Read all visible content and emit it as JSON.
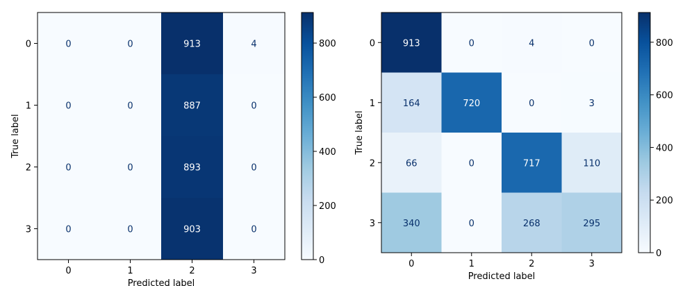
{
  "chart_data": [
    {
      "type": "heatmap",
      "cmap": "Blues",
      "xlabel": "Predicted label",
      "ylabel": "True label",
      "x_categories": [
        "0",
        "1",
        "2",
        "3"
      ],
      "y_categories": [
        "0",
        "1",
        "2",
        "3"
      ],
      "matrix": [
        [
          0,
          0,
          913,
          4
        ],
        [
          0,
          0,
          887,
          0
        ],
        [
          0,
          0,
          893,
          0
        ],
        [
          0,
          0,
          903,
          0
        ]
      ],
      "colorbar": {
        "range": [
          0,
          913
        ],
        "ticks": [
          0,
          200,
          400,
          600,
          800
        ]
      }
    },
    {
      "type": "heatmap",
      "cmap": "Blues",
      "xlabel": "Predicted label",
      "ylabel": "True label",
      "x_categories": [
        "0",
        "1",
        "2",
        "3"
      ],
      "y_categories": [
        "0",
        "1",
        "2",
        "3"
      ],
      "matrix": [
        [
          913,
          0,
          4,
          0
        ],
        [
          164,
          720,
          0,
          3
        ],
        [
          66,
          0,
          717,
          110
        ],
        [
          340,
          0,
          268,
          295
        ]
      ],
      "colorbar": {
        "range": [
          0,
          913
        ],
        "ticks": [
          0,
          200,
          400,
          600,
          800
        ]
      }
    }
  ]
}
